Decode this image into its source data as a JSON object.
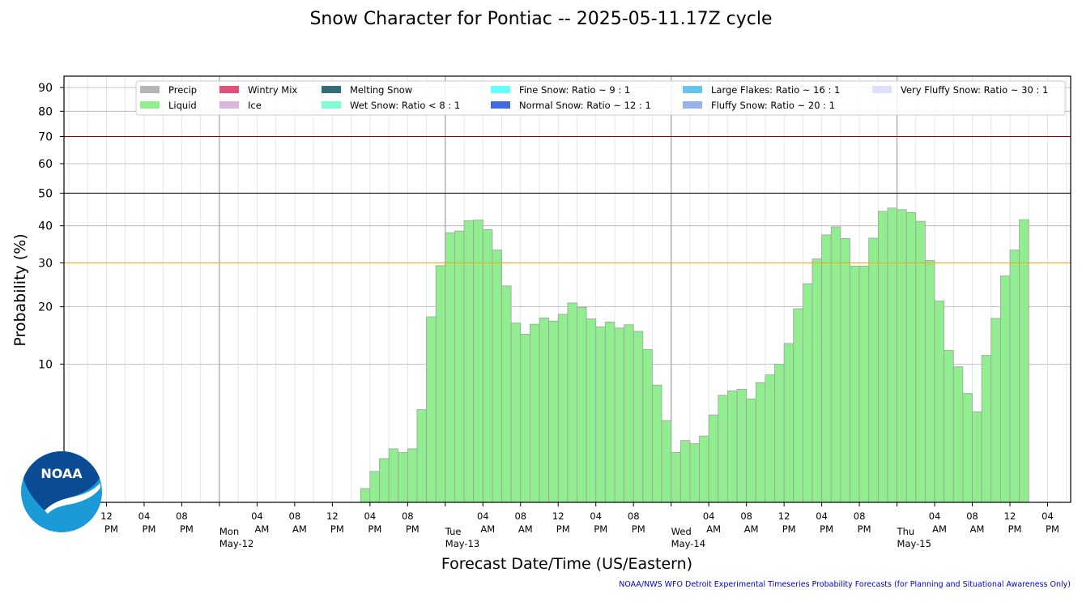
{
  "title": "Snow Character for Pontiac -- 2025-05-11.17Z cycle",
  "footer": "NOAA/NWS WFO Detroit Experimental Timeseries Probability Forecasts (for Planning and Situational Awareness Only)",
  "logo_text": "NOAA",
  "colors": {
    "liquid": "#90ee90",
    "bar_edge": "#a0a0a0",
    "line_70": "#8b0000",
    "line_50": "#000000",
    "line_30": "#ffa500",
    "grid": "#b0b0b0",
    "noaa_dark": "#0b4b94",
    "noaa_light": "#1a9ad7"
  },
  "chart_data": {
    "type": "bar",
    "xlabel": "Forecast Date/Time (US/Eastern)",
    "ylabel": "Probability (%)",
    "ylim": [
      0,
      95
    ],
    "y_scale": "sqrt",
    "y_ticks": [
      10,
      20,
      30,
      40,
      50,
      60,
      70,
      80,
      90
    ],
    "threshold_lines": [
      {
        "value": 70,
        "color": "#8b0000"
      },
      {
        "value": 50,
        "color": "#000000"
      },
      {
        "value": 30,
        "color": "#ffa500"
      }
    ],
    "legend": {
      "placement": "top",
      "entries": [
        {
          "label": "Precip",
          "color": "#b5b5b5"
        },
        {
          "label": "Liquid",
          "color": "#90ee90"
        },
        {
          "label": "Wintry Mix",
          "color": "#e0507a"
        },
        {
          "label": "Ice",
          "color": "#dcb5e0"
        },
        {
          "label": "Melting Snow",
          "color": "#336d7a"
        },
        {
          "label": "Wet Snow: Ratio < 8 : 1",
          "color": "#7fffd4"
        },
        {
          "label": "Fine Snow: Ratio ~ 9 : 1",
          "color": "#66ffff"
        },
        {
          "label": "Normal Snow: Ratio ~ 12 : 1",
          "color": "#4169e1"
        },
        {
          "label": "Large Flakes: Ratio ~ 16 : 1",
          "color": "#66c5f0"
        },
        {
          "label": "Fluffy Snow: Ratio ~ 20 : 1",
          "color": "#9ab0e8"
        },
        {
          "label": "Very Fluffy Snow: Ratio ~ 30 : 1",
          "color": "#dde0fa"
        }
      ]
    },
    "x_ticks": [
      {
        "hour": "12",
        "ampm": "PM"
      },
      {
        "hour": "04",
        "ampm": "PM"
      },
      {
        "hour": "08",
        "ampm": "PM"
      },
      {
        "hour": "",
        "ampm": "",
        "day": "Mon",
        "date": "May-12"
      },
      {
        "hour": "04",
        "ampm": "AM"
      },
      {
        "hour": "08",
        "ampm": "AM"
      },
      {
        "hour": "12",
        "ampm": "PM"
      },
      {
        "hour": "04",
        "ampm": "PM"
      },
      {
        "hour": "08",
        "ampm": "PM"
      },
      {
        "hour": "",
        "ampm": "",
        "day": "Tue",
        "date": "May-13"
      },
      {
        "hour": "04",
        "ampm": "AM"
      },
      {
        "hour": "08",
        "ampm": "AM"
      },
      {
        "hour": "12",
        "ampm": "PM"
      },
      {
        "hour": "04",
        "ampm": "PM"
      },
      {
        "hour": "08",
        "ampm": "PM"
      },
      {
        "hour": "",
        "ampm": "",
        "day": "Wed",
        "date": "May-14"
      },
      {
        "hour": "04",
        "ampm": "AM"
      },
      {
        "hour": "08",
        "ampm": "AM"
      },
      {
        "hour": "12",
        "ampm": "PM"
      },
      {
        "hour": "04",
        "ampm": "PM"
      },
      {
        "hour": "08",
        "ampm": "PM"
      },
      {
        "hour": "",
        "ampm": "",
        "day": "Thu",
        "date": "May-15"
      },
      {
        "hour": "04",
        "ampm": "AM"
      },
      {
        "hour": "08",
        "ampm": "AM"
      },
      {
        "hour": "12",
        "ampm": "PM"
      },
      {
        "hour": "04",
        "ampm": "PM"
      }
    ],
    "series": [
      {
        "name": "Liquid",
        "start_hour": 31,
        "step_hours": 1,
        "values": [
          0.1,
          0.5,
          1.0,
          1.5,
          1.3,
          1.5,
          4.5,
          18,
          29.3,
          38,
          38.5,
          41.5,
          41.7,
          38.9,
          33.3,
          24.5,
          16.8,
          14.8,
          16.6,
          17.8,
          17.2,
          18.5,
          20.8,
          19.9,
          17.6,
          16.1,
          17.0,
          15.9,
          16.5,
          15.3,
          12.2,
          7.2,
          3.5,
          1.3,
          2.0,
          1.8,
          2.3,
          4.0,
          6.0,
          6.5,
          6.7,
          5.6,
          7.5,
          8.5,
          10.0,
          13.2,
          19.6,
          25.0,
          31.0,
          37.4,
          39.7,
          36.4,
          29.2,
          29.2,
          36.5,
          44.3,
          45.3,
          44.8,
          43.9,
          41.3,
          30.6,
          21.2,
          12.1,
          9.6,
          6.2,
          4.3,
          11.3,
          17.7,
          26.8,
          33.3,
          41.8
        ]
      }
    ]
  }
}
